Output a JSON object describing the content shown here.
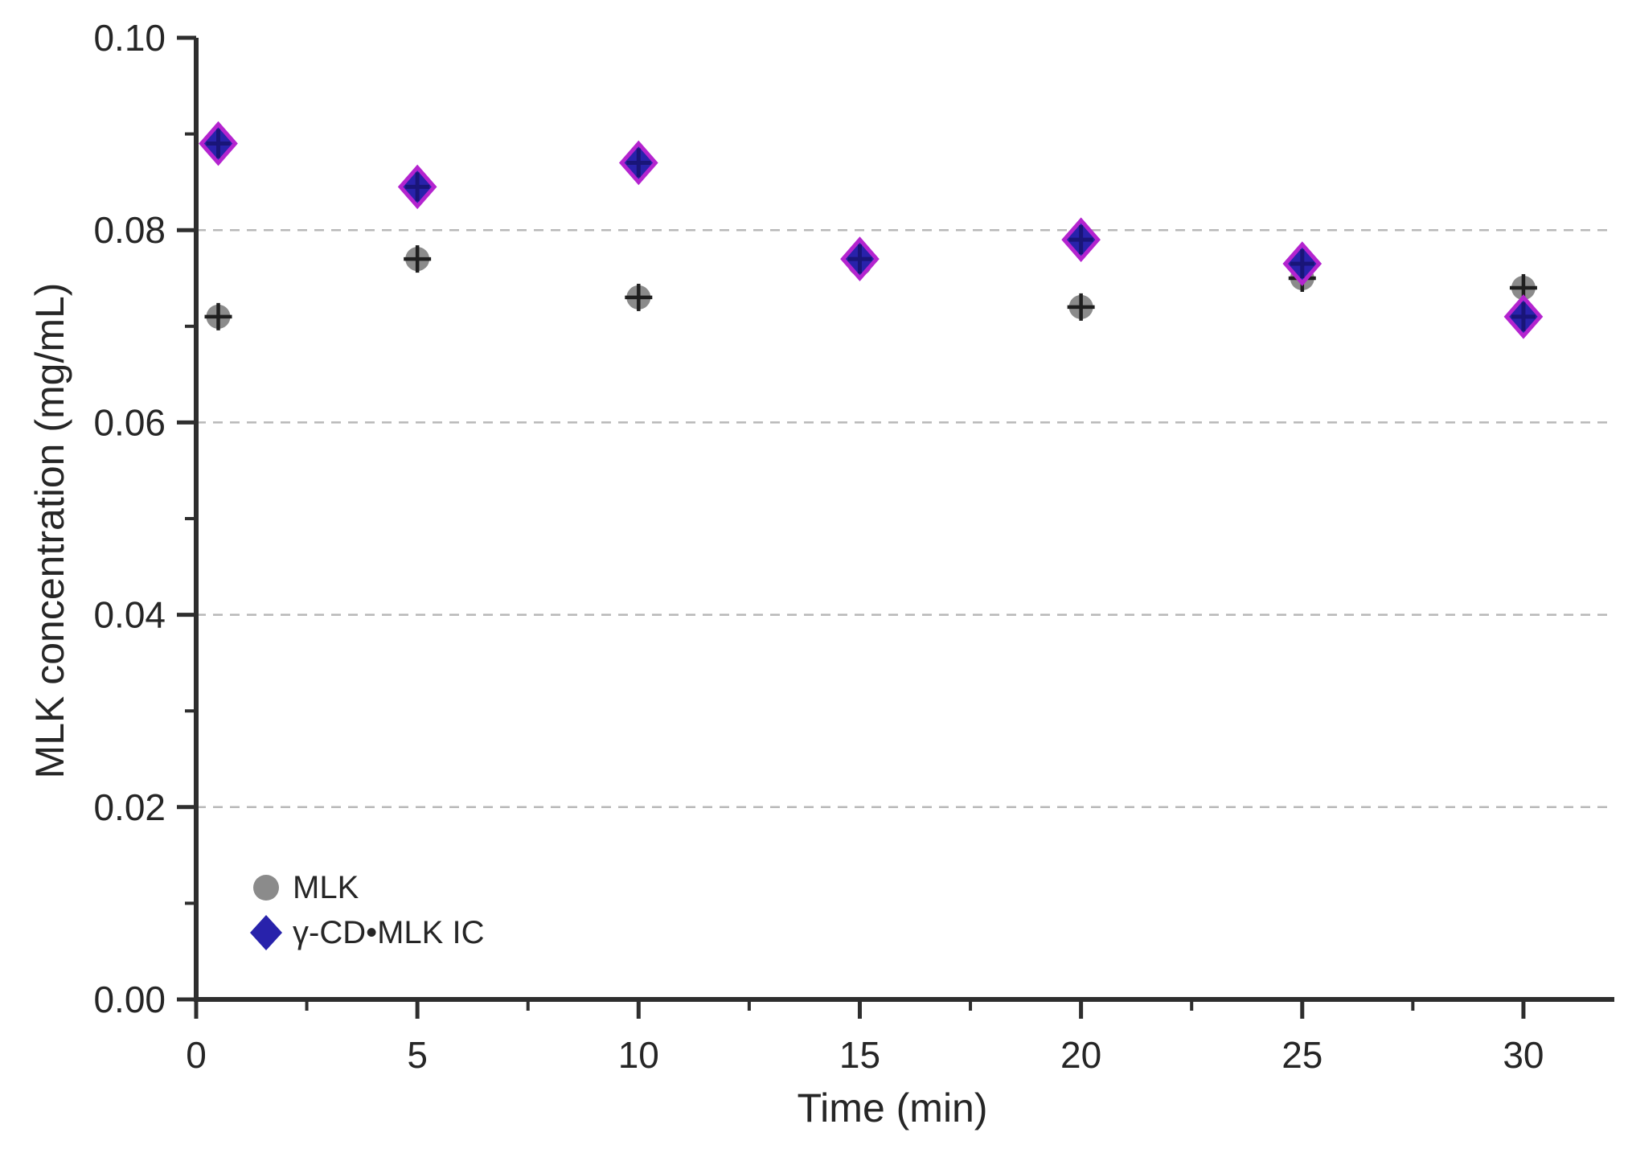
{
  "chart_data": {
    "type": "scatter",
    "title": "",
    "xlabel": "Time (min)",
    "ylabel": "MLK concentration (mg/mL)",
    "xlim": [
      0,
      32
    ],
    "ylim": [
      0.0,
      0.1
    ],
    "x_major_ticks": [
      0,
      5,
      10,
      15,
      20,
      25,
      30
    ],
    "x_minor_ticks": [
      2.5,
      7.5,
      12.5,
      17.5,
      22.5,
      27.5
    ],
    "y_major_ticks": [
      0.0,
      0.02,
      0.04,
      0.06,
      0.08,
      0.1
    ],
    "y_minor_ticks": [
      0.01,
      0.03,
      0.05,
      0.07,
      0.09
    ],
    "y_tick_decimals": 2,
    "grid": "horizontal-dashed",
    "gridlines_y": [
      0.02,
      0.04,
      0.06,
      0.08
    ],
    "legend_position": "bottom-left",
    "series": [
      {
        "name": "MLK",
        "marker": "circle",
        "fill": "#8b8b8b",
        "error_color": "#1f1f1f",
        "x": [
          0.5,
          5,
          10,
          15,
          20,
          25,
          30
        ],
        "y": [
          0.071,
          0.077,
          0.073,
          0.0765,
          0.072,
          0.075,
          0.074
        ]
      },
      {
        "name": "γ-CD•MLK IC",
        "marker": "diamond",
        "fill": "#2822ab",
        "edge": "#b424cf",
        "error_color": "#191578",
        "x": [
          0.5,
          5,
          10,
          15,
          20,
          25,
          30
        ],
        "y": [
          0.089,
          0.0845,
          0.087,
          0.077,
          0.079,
          0.0765,
          0.071
        ]
      }
    ]
  },
  "colors": {
    "background": "#ffffff",
    "axis": "#2e2e2e",
    "grid": "#b8b8b8",
    "text": "#262626"
  }
}
